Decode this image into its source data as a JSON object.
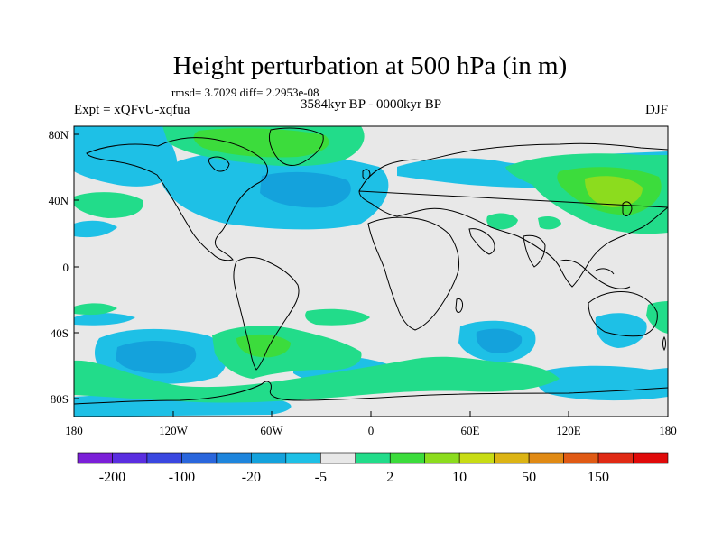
{
  "title": "Height perturbation at 500 hPa (in m)",
  "stats": "rmsd= 3.7029 diff= 2.2953e-08",
  "experiment": "Expt = xQFvU-xqfua",
  "period": "3584kyr BP - 0000kyr BP",
  "season": "DJF",
  "lat_ticks": [
    "80N",
    "40N",
    "0",
    "40S",
    "80S"
  ],
  "lon_ticks": [
    "180",
    "120W",
    "60W",
    "0",
    "60E",
    "120E",
    "180"
  ],
  "colorbar": {
    "labels": [
      "-200",
      "-100",
      "-20",
      "-5",
      "2",
      "10",
      "50",
      "150"
    ],
    "colors": [
      "#7b1fd8",
      "#5a2ee0",
      "#3a47e0",
      "#2a66dc",
      "#1e85dc",
      "#14a2dc",
      "#1ec0e6",
      "#e8e8e8",
      "#22dc8a",
      "#3cdc3c",
      "#8cdc1e",
      "#c8dc14",
      "#dcb414",
      "#e08a14",
      "#e05a14",
      "#e02a14",
      "#e00a0a"
    ]
  },
  "palette": {
    "neutral": "#e8e8e8",
    "neg_light": "#1ec0e6",
    "neg_mid": "#14a2dc",
    "neg_dark": "#1e85dc",
    "pos_light": "#22dc8a",
    "pos_mid": "#3cdc3c",
    "pos_strong": "#8cdc1e",
    "coast": "#000000"
  }
}
